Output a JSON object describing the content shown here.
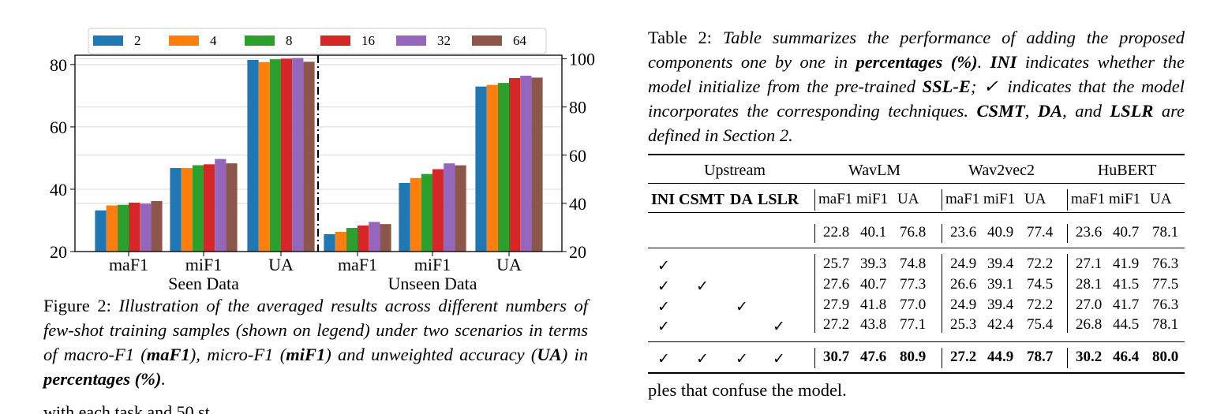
{
  "chart_data": {
    "type": "bar",
    "legend": [
      "2",
      "4",
      "8",
      "16",
      "32",
      "64"
    ],
    "colors": [
      "#1f77b4",
      "#ff7f0e",
      "#2ca02c",
      "#d62728",
      "#9467bd",
      "#8c564b"
    ],
    "legend_position": "top",
    "groups": [
      {
        "name": "Seen Data",
        "categories": [
          "maF1",
          "miF1",
          "UA"
        ],
        "axis": "left"
      },
      {
        "name": "Unseen Data",
        "categories": [
          "maF1",
          "miF1",
          "UA"
        ],
        "axis": "right"
      }
    ],
    "series": [
      {
        "name": "2",
        "values": [
          33.2,
          46.8,
          81.5,
          27.2,
          48.5,
          88.5
        ]
      },
      {
        "name": "4",
        "values": [
          34.8,
          46.8,
          80.8,
          28.2,
          50.5,
          89.2
        ]
      },
      {
        "name": "8",
        "values": [
          35.0,
          47.7,
          81.7,
          29.8,
          52.2,
          90.0
        ]
      },
      {
        "name": "16",
        "values": [
          35.7,
          48.0,
          81.9,
          30.8,
          54.2,
          92.0
        ]
      },
      {
        "name": "32",
        "values": [
          35.4,
          49.7,
          82.1,
          32.3,
          56.6,
          93.0
        ]
      },
      {
        "name": "64",
        "values": [
          36.2,
          48.3,
          80.9,
          31.4,
          55.8,
          92.2
        ]
      }
    ],
    "left_axis": {
      "ylim": [
        20,
        83
      ],
      "ticks": [
        "20",
        "40",
        "60",
        "80"
      ]
    },
    "right_axis": {
      "ylim": [
        20,
        101.5
      ],
      "ticks": [
        "20",
        "40",
        "60",
        "80",
        "100"
      ]
    },
    "grid": true,
    "group_divider": "dash-dot"
  },
  "figure_caption": {
    "label": "Figure 2:",
    "text_parts": [
      {
        "t": "Illustration of the averaged results across different numbers of few-shot training samples (shown on legend) under two scenarios in terms of macro-F1 (",
        "b": false
      },
      {
        "t": "maF1",
        "b": true
      },
      {
        "t": "), micro-F1 (",
        "b": false
      },
      {
        "t": "miF1",
        "b": true
      },
      {
        "t": ") and unweighted accuracy (",
        "b": false
      },
      {
        "t": "UA",
        "b": true
      },
      {
        "t": ") in ",
        "b": false
      },
      {
        "t": "percentages (%)",
        "b": true
      },
      {
        "t": ".",
        "b": false
      }
    ]
  },
  "cut_text": "with each task and 50 st",
  "table_caption": {
    "label": "Table 2:",
    "text_parts": [
      {
        "t": "Table summarizes the performance of adding the proposed components one by one in ",
        "b": false
      },
      {
        "t": "percentages (%)",
        "b": true
      },
      {
        "t": ". ",
        "b": false
      },
      {
        "t": "INI",
        "b": true
      },
      {
        "t": " indicates whether the model initialize from the pre-trained ",
        "b": false
      },
      {
        "t": "SSL-E",
        "b": true
      },
      {
        "t": "; ✓ indicates that the model incorporates the corresponding techniques. ",
        "b": false
      },
      {
        "t": "CSMT",
        "b": true
      },
      {
        "t": ", ",
        "b": false
      },
      {
        "t": "DA",
        "b": true
      },
      {
        "t": ", and ",
        "b": false
      },
      {
        "t": "LSLR",
        "b": true
      },
      {
        "t": " are defined in Section 2.",
        "b": false
      }
    ]
  },
  "table": {
    "group_headers": [
      "Upstream",
      "WavLM",
      "Wav2vec2",
      "HuBERT"
    ],
    "upstream_cols": [
      "INI",
      "CSMT",
      "DA",
      "LSLR"
    ],
    "metric_cols": [
      "maF1",
      "miF1",
      "UA"
    ],
    "check": "✓",
    "rows": [
      {
        "flags": [
          false,
          false,
          false,
          false
        ],
        "vals": [
          "22.8",
          "40.1",
          "76.8",
          "23.6",
          "40.9",
          "77.4",
          "23.6",
          "40.7",
          "78.1"
        ],
        "bold": false
      },
      {
        "flags": [
          true,
          false,
          false,
          false
        ],
        "vals": [
          "25.7",
          "39.3",
          "74.8",
          "24.9",
          "39.4",
          "72.2",
          "27.1",
          "41.9",
          "76.3"
        ],
        "bold": false
      },
      {
        "flags": [
          true,
          true,
          false,
          false
        ],
        "vals": [
          "27.6",
          "40.7",
          "77.3",
          "26.6",
          "39.1",
          "74.5",
          "28.1",
          "41.5",
          "77.5"
        ],
        "bold": false
      },
      {
        "flags": [
          true,
          false,
          true,
          false
        ],
        "vals": [
          "27.9",
          "41.8",
          "77.0",
          "24.9",
          "39.4",
          "72.2",
          "27.0",
          "41.7",
          "76.3"
        ],
        "bold": false
      },
      {
        "flags": [
          true,
          false,
          false,
          true
        ],
        "vals": [
          "27.2",
          "43.8",
          "77.1",
          "25.3",
          "42.4",
          "75.4",
          "26.8",
          "44.5",
          "78.1"
        ],
        "bold": false
      },
      {
        "flags": [
          true,
          true,
          true,
          true
        ],
        "vals": [
          "30.7",
          "47.6",
          "80.9",
          "27.2",
          "44.9",
          "78.7",
          "30.2",
          "46.4",
          "80.0"
        ],
        "bold": true
      }
    ]
  },
  "after_table_text": "ples that confuse the model."
}
